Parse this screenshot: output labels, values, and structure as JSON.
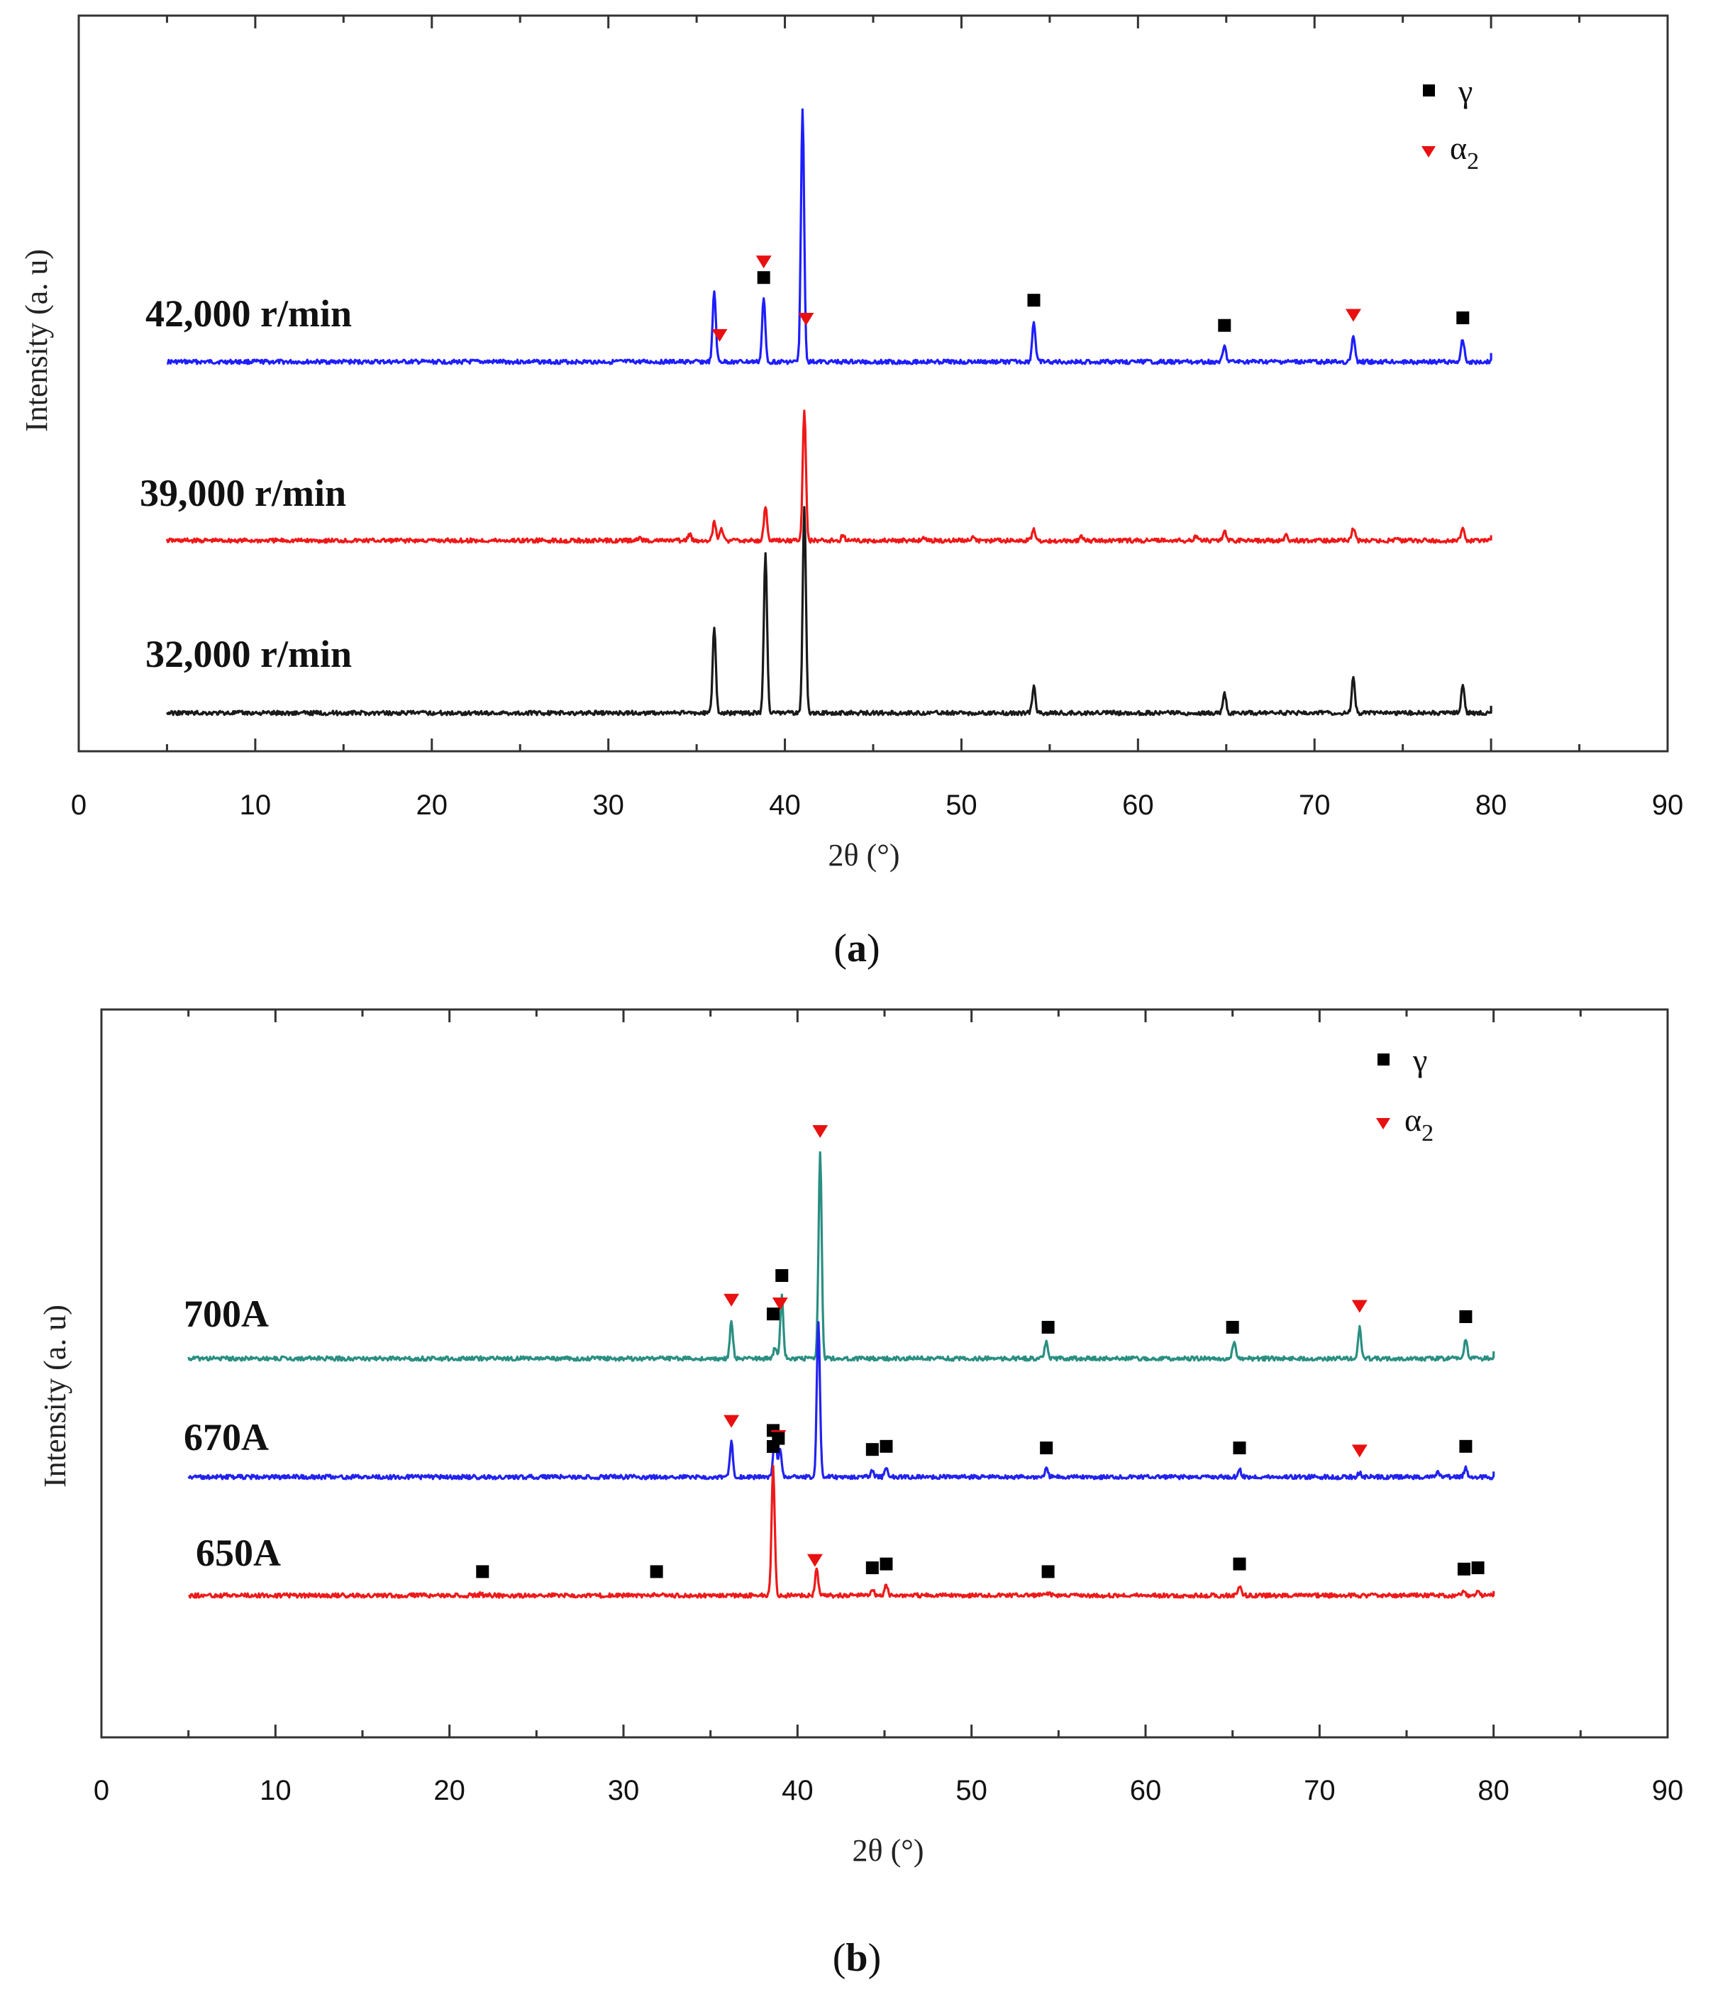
{
  "figure": {
    "caption_a": "a",
    "caption_b": "b"
  },
  "chart_data": [
    {
      "type": "line",
      "panel": "a",
      "xlabel": "2θ (°)",
      "ylabel": "Intensity (a. u)",
      "xlim": [
        0,
        90
      ],
      "xticks": [
        "0",
        "10",
        "20",
        "30",
        "40",
        "50",
        "60",
        "70",
        "80",
        "90"
      ],
      "x_range": [
        5,
        80
      ],
      "legend": [
        {
          "name": "γ",
          "marker": "square",
          "color": "#000000"
        },
        {
          "name": "α2",
          "marker": "triangle",
          "color": "#e81010"
        }
      ],
      "legend_position": "top-right",
      "series": [
        {
          "name": "42,000 r/min",
          "color": "#1e1eff",
          "peaks": [
            [
              36.0,
              0.28
            ],
            [
              38.8,
              0.25
            ],
            [
              41.0,
              1.0
            ],
            [
              54.1,
              0.16
            ],
            [
              64.9,
              0.06
            ],
            [
              72.2,
              0.1
            ],
            [
              78.4,
              0.09
            ]
          ],
          "markers": [
            {
              "x": 36.3,
              "type": "triangle"
            },
            {
              "x": 38.8,
              "type": "triangle",
              "row": 2
            },
            {
              "x": 38.8,
              "type": "square"
            },
            {
              "x": 41.2,
              "type": "triangle"
            },
            {
              "x": 54.1,
              "type": "square"
            },
            {
              "x": 64.9,
              "type": "square"
            },
            {
              "x": 72.2,
              "type": "triangle"
            },
            {
              "x": 78.4,
              "type": "square"
            }
          ]
        },
        {
          "name": "39,000 r/min",
          "color": "#f01818",
          "peaks": [
            [
              31.8,
              0.02
            ],
            [
              34.6,
              0.04
            ],
            [
              36.0,
              0.12
            ],
            [
              36.4,
              0.09
            ],
            [
              38.9,
              0.22
            ],
            [
              41.1,
              0.85
            ],
            [
              43.3,
              0.04
            ],
            [
              47.9,
              0.02
            ],
            [
              50.6,
              0.02
            ],
            [
              54.1,
              0.08
            ],
            [
              56.8,
              0.03
            ],
            [
              63.3,
              0.03
            ],
            [
              64.9,
              0.06
            ],
            [
              68.4,
              0.03
            ],
            [
              72.2,
              0.08
            ],
            [
              74.6,
              0.02
            ],
            [
              78.4,
              0.07
            ]
          ],
          "markers": []
        },
        {
          "name": "32,000 r/min",
          "color": "#1a1a1a",
          "peaks": [
            [
              36.0,
              0.42
            ],
            [
              38.9,
              0.78
            ],
            [
              41.1,
              1.0
            ],
            [
              54.1,
              0.13
            ],
            [
              64.9,
              0.1
            ],
            [
              72.2,
              0.17
            ],
            [
              78.4,
              0.13
            ]
          ],
          "markers": []
        }
      ]
    },
    {
      "type": "line",
      "panel": "b",
      "xlabel": "2θ (°)",
      "ylabel": "Intensity (a. u)",
      "xlim": [
        0,
        90
      ],
      "xticks": [
        "0",
        "10",
        "20",
        "30",
        "40",
        "50",
        "60",
        "70",
        "80",
        "90"
      ],
      "x_range": [
        5,
        80
      ],
      "legend": [
        {
          "name": "γ",
          "marker": "square",
          "color": "#000000"
        },
        {
          "name": "α2",
          "marker": "triangle",
          "color": "#e81010"
        }
      ],
      "legend_position": "top-right",
      "series": [
        {
          "name": "700A",
          "color": "#2a8f82",
          "peaks": [
            [
              36.2,
              0.18
            ],
            [
              38.7,
              0.05
            ],
            [
              39.1,
              0.3
            ],
            [
              41.3,
              1.0
            ],
            [
              54.3,
              0.09
            ],
            [
              65.1,
              0.09
            ],
            [
              72.3,
              0.15
            ],
            [
              78.4,
              0.1
            ]
          ],
          "markers": [
            {
              "x": 36.2,
              "type": "triangle"
            },
            {
              "x": 39.0,
              "type": "triangle"
            },
            {
              "x": 39.1,
              "type": "square"
            },
            {
              "x": 38.6,
              "type": "square",
              "low": true
            },
            {
              "x": 41.3,
              "type": "triangle"
            },
            {
              "x": 54.4,
              "type": "square"
            },
            {
              "x": 65.0,
              "type": "square"
            },
            {
              "x": 72.3,
              "type": "triangle"
            },
            {
              "x": 78.4,
              "type": "square"
            }
          ]
        },
        {
          "name": "670A",
          "color": "#2222f0",
          "peaks": [
            [
              36.2,
              0.22
            ],
            [
              38.7,
              0.3
            ],
            [
              39.0,
              0.18
            ],
            [
              41.2,
              1.0
            ],
            [
              44.3,
              0.04
            ],
            [
              45.1,
              0.06
            ],
            [
              54.3,
              0.05
            ],
            [
              65.4,
              0.05
            ],
            [
              72.3,
              0.03
            ],
            [
              76.8,
              0.03
            ],
            [
              78.4,
              0.06
            ]
          ],
          "markers": [
            {
              "x": 36.2,
              "type": "triangle"
            },
            {
              "x": 38.6,
              "type": "square"
            },
            {
              "x": 38.9,
              "type": "triangle"
            },
            {
              "x": 38.9,
              "type": "square",
              "low": true
            },
            {
              "x": 44.3,
              "type": "square"
            },
            {
              "x": 45.1,
              "type": "square"
            },
            {
              "x": 54.3,
              "type": "square"
            },
            {
              "x": 65.4,
              "type": "square"
            },
            {
              "x": 72.3,
              "type": "triangle"
            },
            {
              "x": 78.4,
              "type": "square"
            }
          ]
        },
        {
          "name": "650A",
          "color": "#ee1a1a",
          "peaks": [
            [
              21.8,
              0.01
            ],
            [
              31.8,
              0.01
            ],
            [
              38.6,
              1.0
            ],
            [
              41.1,
              0.2
            ],
            [
              44.3,
              0.05
            ],
            [
              45.1,
              0.08
            ],
            [
              54.4,
              0.02
            ],
            [
              65.4,
              0.08
            ],
            [
              78.3,
              0.04
            ],
            [
              79.1,
              0.05
            ]
          ],
          "markers": [
            {
              "x": 21.9,
              "type": "square"
            },
            {
              "x": 31.9,
              "type": "square"
            },
            {
              "x": 38.6,
              "type": "square"
            },
            {
              "x": 41.0,
              "type": "triangle"
            },
            {
              "x": 44.3,
              "type": "square"
            },
            {
              "x": 45.1,
              "type": "square"
            },
            {
              "x": 54.4,
              "type": "square"
            },
            {
              "x": 65.4,
              "type": "square"
            },
            {
              "x": 78.3,
              "type": "square"
            },
            {
              "x": 79.1,
              "type": "square"
            }
          ]
        }
      ]
    }
  ]
}
